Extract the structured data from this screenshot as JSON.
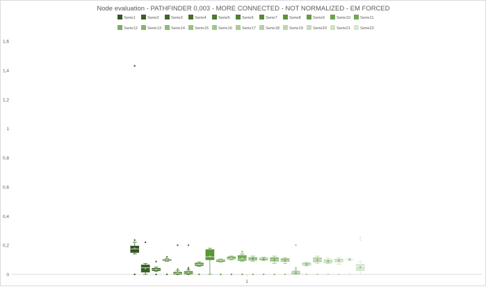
{
  "chart_data": {
    "type": "boxplot",
    "title": "Node evaluation - PATHFINDER 0,003 - MORE CONNECTED  - NOT NORMALIZED - EM FORCED",
    "xlabel": "",
    "ylabel": "",
    "categories": [
      "1"
    ],
    "ylim": [
      0,
      1.6
    ],
    "yticks": [
      "0",
      "0,2",
      "0,4",
      "0,6",
      "0,8",
      "1",
      "1,2",
      "1,4",
      "1,6"
    ],
    "ytick_values": [
      0,
      0.2,
      0.4,
      0.6,
      0.8,
      1.0,
      1.2,
      1.4,
      1.6
    ],
    "grid": false,
    "legend_position": "top",
    "series": [
      {
        "name": "Serie1",
        "color": "#375623",
        "min": 0.14,
        "q1": 0.15,
        "median": 0.175,
        "q3": 0.195,
        "max": 0.22,
        "mean": 0.18,
        "outliers": [
          1.43,
          0.235,
          0.0
        ]
      },
      {
        "name": "Serie2",
        "color": "#3a5f23",
        "min": 0.0,
        "q1": 0.015,
        "median": 0.045,
        "q3": 0.065,
        "max": 0.075,
        "mean": 0.04,
        "outliers": [
          0.22
        ]
      },
      {
        "name": "Serie3",
        "color": "#3f6826",
        "min": 0.02,
        "q1": 0.025,
        "median": 0.033,
        "q3": 0.042,
        "max": 0.05,
        "mean": 0.034,
        "outliers": [
          0.088,
          0.0
        ]
      },
      {
        "name": "Serie4",
        "color": "#46712b",
        "min": 0.09,
        "q1": 0.095,
        "median": 0.1,
        "q3": 0.103,
        "max": 0.108,
        "mean": 0.1,
        "outliers": [
          0.12,
          0.0
        ]
      },
      {
        "name": "Serie5",
        "color": "#4a7a2d",
        "min": 0.0,
        "q1": 0.002,
        "median": 0.008,
        "q3": 0.015,
        "max": 0.025,
        "mean": 0.01,
        "outliers": [
          0.2,
          0.035,
          0.0
        ]
      },
      {
        "name": "Serie6",
        "color": "#4e8430",
        "min": 0.0,
        "q1": 0.003,
        "median": 0.01,
        "q3": 0.02,
        "max": 0.03,
        "mean": 0.012,
        "outliers": [
          0.2,
          0.045,
          0.038,
          0.0
        ]
      },
      {
        "name": "Serie7",
        "color": "#548c35",
        "min": 0.055,
        "q1": 0.06,
        "median": 0.07,
        "q3": 0.078,
        "max": 0.085,
        "mean": 0.07,
        "outliers": [
          0.0
        ]
      },
      {
        "name": "Serie8",
        "color": "#5a953a",
        "min": 0.0,
        "q1": 0.1,
        "median": 0.12,
        "q3": 0.17,
        "max": 0.18,
        "mean": 0.125,
        "outliers": []
      },
      {
        "name": "Serie9",
        "color": "#629c43",
        "min": 0.085,
        "q1": 0.088,
        "median": 0.095,
        "q3": 0.1,
        "max": 0.105,
        "mean": 0.095,
        "outliers": [
          0.0
        ]
      },
      {
        "name": "Serie10",
        "color": "#6aa34d",
        "min": 0.1,
        "q1": 0.105,
        "median": 0.11,
        "q3": 0.12,
        "max": 0.125,
        "mean": 0.112,
        "outliers": [
          0.0
        ]
      },
      {
        "name": "Serie11",
        "color": "#72a956",
        "min": 0.09,
        "q1": 0.095,
        "median": 0.105,
        "q3": 0.13,
        "max": 0.14,
        "mean": 0.11,
        "outliers": [
          0.155,
          0.0
        ]
      },
      {
        "name": "Serie12",
        "color": "#7baf61",
        "min": 0.09,
        "q1": 0.098,
        "median": 0.105,
        "q3": 0.115,
        "max": 0.125,
        "mean": 0.108,
        "outliers": [
          0.0
        ]
      },
      {
        "name": "Serie13",
        "color": "#84b56b",
        "min": 0.095,
        "q1": 0.1,
        "median": 0.107,
        "q3": 0.112,
        "max": 0.118,
        "mean": 0.106,
        "outliers": [
          0.0
        ]
      },
      {
        "name": "Serie14",
        "color": "#8dbb76",
        "min": 0.075,
        "q1": 0.09,
        "median": 0.1,
        "q3": 0.115,
        "max": 0.125,
        "mean": 0.1,
        "outliers": [
          0.0
        ]
      },
      {
        "name": "Serie15",
        "color": "#96c181",
        "min": 0.075,
        "q1": 0.088,
        "median": 0.095,
        "q3": 0.108,
        "max": 0.115,
        "mean": 0.096,
        "outliers": [
          0.0
        ]
      },
      {
        "name": "Serie16",
        "color": "#a0c78c",
        "min": 0.0,
        "q1": 0.003,
        "median": 0.012,
        "q3": 0.02,
        "max": 0.025,
        "mean": 0.012,
        "outliers": [
          0.2,
          0.045,
          0.035
        ]
      },
      {
        "name": "Serie17",
        "color": "#aacd98",
        "min": 0.058,
        "q1": 0.063,
        "median": 0.07,
        "q3": 0.078,
        "max": 0.082,
        "mean": 0.07,
        "outliers": [
          0.0
        ]
      },
      {
        "name": "Serie18",
        "color": "#b3d2a3",
        "min": 0.075,
        "q1": 0.085,
        "median": 0.1,
        "q3": 0.115,
        "max": 0.125,
        "mean": 0.1,
        "outliers": [
          0.0
        ]
      },
      {
        "name": "Serie19",
        "color": "#bcd7ae",
        "min": 0.075,
        "q1": 0.08,
        "median": 0.09,
        "q3": 0.1,
        "max": 0.11,
        "mean": 0.09,
        "outliers": [
          0.0
        ]
      },
      {
        "name": "Serie20",
        "color": "#c5dcb8",
        "min": 0.07,
        "q1": 0.085,
        "median": 0.092,
        "q3": 0.105,
        "max": 0.115,
        "mean": 0.095,
        "outliers": [
          0.0
        ]
      },
      {
        "name": "Serie21",
        "color": "#cee2c3",
        "min": 0.095,
        "q1": 0.1,
        "median": 0.102,
        "q3": 0.105,
        "max": 0.108,
        "mean": 0.102,
        "outliers": [
          0.0
        ]
      },
      {
        "name": "Serie22",
        "color": "#d7e7ce",
        "min": 0.0,
        "q1": 0.025,
        "median": 0.055,
        "q3": 0.07,
        "max": 0.09,
        "mean": 0.05,
        "outliers": [
          0.255,
          0.235
        ]
      }
    ]
  }
}
